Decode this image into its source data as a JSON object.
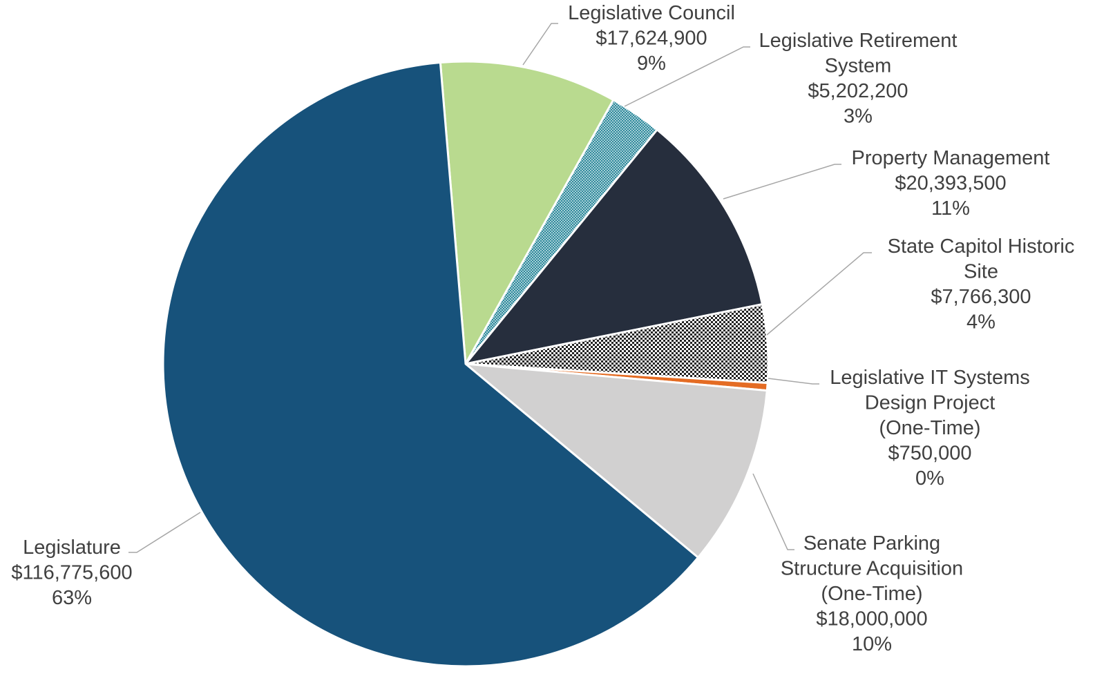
{
  "chart_data": {
    "type": "pie",
    "title": "",
    "slices": [
      {
        "label_lines": [
          "Legislative Council"
        ],
        "amount": "$17,624,900",
        "pct": "9%",
        "value": 17624900,
        "color": "#b9da8f",
        "pattern": "none"
      },
      {
        "label_lines": [
          "Legislative Retirement",
          "System"
        ],
        "amount": "$5,202,200",
        "pct": "3%",
        "value": 5202200,
        "color": "#2e8a9c",
        "pattern": "dots"
      },
      {
        "label_lines": [
          "Property Management"
        ],
        "amount": "$20,393,500",
        "pct": "11%",
        "value": 20393500,
        "color": "#262e3d",
        "pattern": "none"
      },
      {
        "label_lines": [
          "State Capitol Historic",
          "Site"
        ],
        "amount": "$7,766,300",
        "pct": "4%",
        "value": 7766300,
        "color": "#222222",
        "pattern": "checker"
      },
      {
        "label_lines": [
          "Legislative IT Systems",
          "Design Project",
          "(One-Time)"
        ],
        "amount": "$750,000",
        "pct": "0%",
        "value": 750000,
        "color": "#e46c24",
        "pattern": "none"
      },
      {
        "label_lines": [
          "Senate Parking",
          "Structure Acquisition",
          "(One-Time)"
        ],
        "amount": "$18,000,000",
        "pct": "10%",
        "value": 18000000,
        "color": "#d1d0d0",
        "pattern": "none"
      },
      {
        "label_lines": [
          "Legislature"
        ],
        "amount": "$116,775,600",
        "pct": "63%",
        "value": 116775600,
        "color": "#17527b",
        "pattern": "none"
      }
    ]
  }
}
